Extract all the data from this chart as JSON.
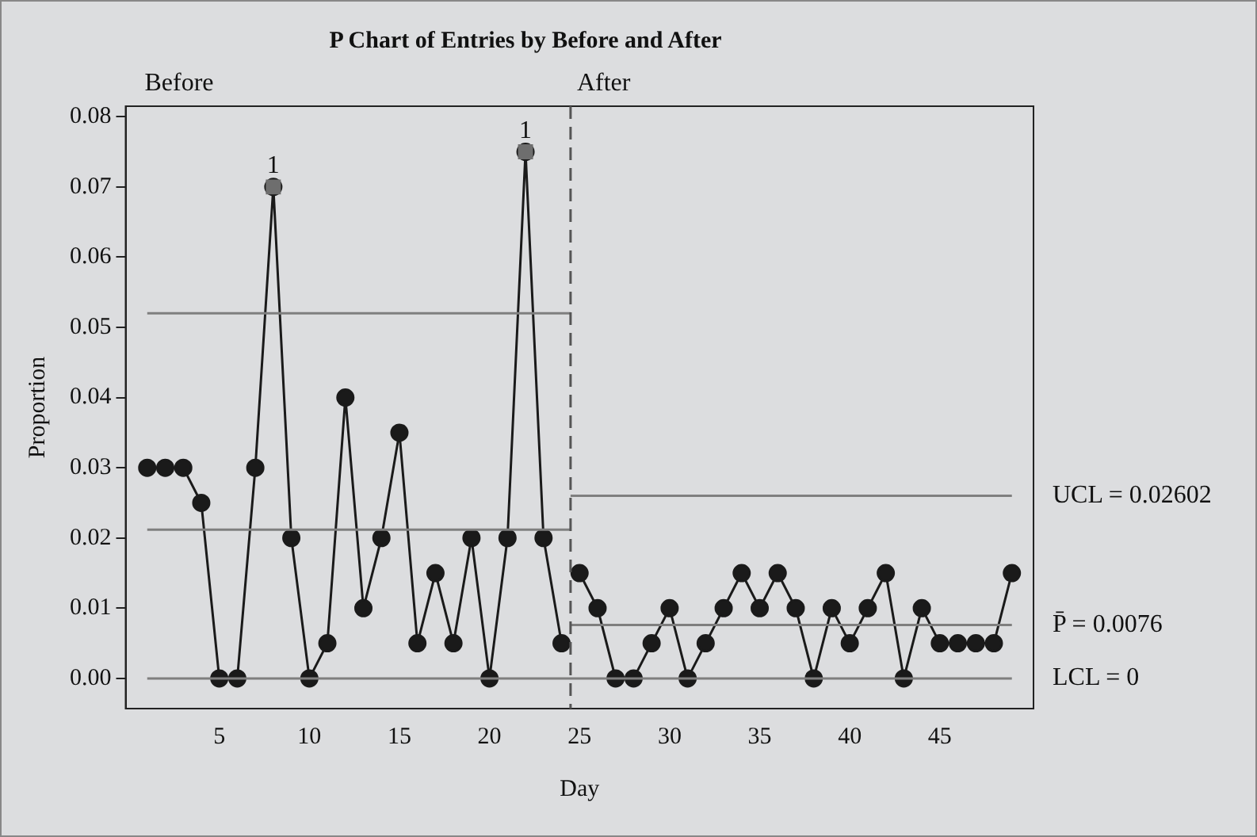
{
  "chart_data": {
    "type": "line",
    "title": "P Chart of Entries by Before and After",
    "xlabel": "Day",
    "ylabel": "Proportion",
    "xlim": [
      -0.2,
      50.2
    ],
    "xticks": [
      5,
      10,
      15,
      20,
      25,
      30,
      35,
      40,
      45
    ],
    "ylim": [
      -0.0043,
      0.0815
    ],
    "yticks": [
      {
        "value": 0,
        "label": "0.00"
      },
      {
        "value": 0.01,
        "label": "0.01"
      },
      {
        "value": 0.02,
        "label": "0.02"
      },
      {
        "value": 0.03,
        "label": "0.03"
      },
      {
        "value": 0.04,
        "label": "0.04"
      },
      {
        "value": 0.05,
        "label": "0.05"
      },
      {
        "value": 0.06,
        "label": "0.06"
      },
      {
        "value": 0.07,
        "label": "0.07"
      },
      {
        "value": 0.08,
        "label": "0.08"
      }
    ],
    "grid": false,
    "legend": false,
    "marker": "circle",
    "line_style": "solid",
    "series": [
      {
        "color": "#7f7f7f",
        "marker": "none",
        "x": [
          1,
          24.5
        ],
        "values": [
          0.052,
          0.052
        ]
      },
      {
        "color": "#7f7f7f",
        "marker": "none",
        "x": [
          1,
          24.5
        ],
        "values": [
          0.0212,
          0.0212
        ]
      },
      {
        "name": "UCL = 0.02602",
        "color": "#7f7f7f",
        "marker": "none",
        "x": [
          24.5,
          49
        ],
        "values": [
          0.02602,
          0.02602
        ]
      },
      {
        "name": "P̄ = 0.0076",
        "color": "#7f7f7f",
        "marker": "none",
        "x": [
          24.5,
          49
        ],
        "values": [
          0.0076,
          0.0076
        ]
      },
      {
        "name": "LCL = 0",
        "color": "#7f7f7f",
        "marker": "none",
        "x": [
          1,
          49
        ],
        "values": [
          0,
          0
        ]
      },
      {
        "color": "#1a1a1a",
        "x": [
          1,
          2,
          3,
          4,
          5,
          6,
          7,
          8,
          9,
          10,
          11,
          12,
          13,
          14,
          15,
          16,
          17,
          18,
          19,
          20,
          21,
          22,
          23,
          24
        ],
        "values": [
          0.03,
          0.03,
          0.03,
          0.025,
          0,
          0,
          0.03,
          0.07,
          0.02,
          0,
          0.005,
          0.04,
          0.01,
          0.02,
          0.035,
          0.005,
          0.015,
          0.005,
          0.02,
          0,
          0.02,
          0.075,
          0.02,
          0.005
        ]
      },
      {
        "color": "#1a1a1a",
        "x": [
          25,
          26,
          27,
          28,
          29,
          30,
          31,
          32,
          33,
          34,
          35,
          36,
          37,
          38,
          39,
          40,
          41,
          42,
          43,
          44,
          45,
          46,
          47,
          48,
          49
        ],
        "values": [
          0.015,
          0.01,
          0,
          0,
          0.005,
          0.01,
          0,
          0.005,
          0.01,
          0.015,
          0.01,
          0.015,
          0.01,
          0,
          0.01,
          0.005,
          0.01,
          0.015,
          0,
          0.01,
          0.005,
          0.005,
          0.005,
          0.005,
          0.015
        ]
      },
      {
        "type": "scatter",
        "color": "#6e6e6e",
        "marker": "square",
        "x": [
          8,
          22
        ],
        "values": [
          0.07,
          0.075
        ]
      }
    ],
    "ref_lines": [
      {
        "axis": "x",
        "value": 24.5,
        "label": "After",
        "color": "#555555",
        "line_style": "dashed"
      }
    ],
    "annotations": [
      "Before",
      {
        "text": "1",
        "x": 8,
        "y": 0.07
      },
      {
        "text": "1",
        "x": 22,
        "y": 0.075
      }
    ]
  }
}
